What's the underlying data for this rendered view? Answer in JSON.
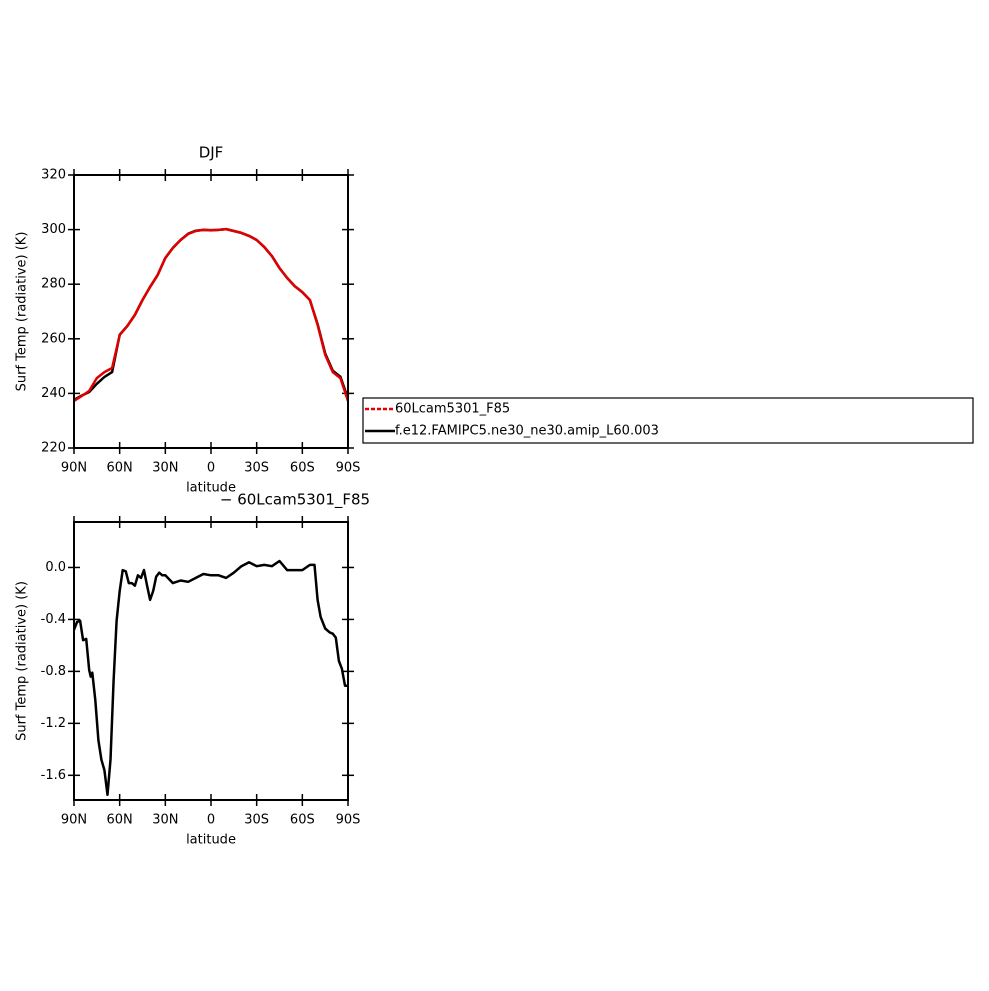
{
  "chart_data": [
    {
      "type": "line",
      "title": "DJF",
      "xlabel": "latitude",
      "ylabel": "Surf Temp (radiative) (K)",
      "x": [
        90,
        85,
        80,
        75,
        70,
        65,
        60,
        55,
        50,
        45,
        40,
        35,
        30,
        25,
        20,
        15,
        10,
        5,
        0,
        -5,
        -10,
        -15,
        -20,
        -25,
        -30,
        -35,
        -40,
        -45,
        -50,
        -55,
        -60,
        -65,
        -70,
        -75,
        -80,
        -85,
        -90
      ],
      "series": [
        {
          "name": "60Lcam5301_F85",
          "color": "#e00000",
          "values": [
            237.2,
            239.0,
            240.9,
            245.6,
            247.8,
            249.3,
            261.4,
            264.7,
            268.7,
            274.2,
            279.0,
            283.4,
            289.6,
            293.3,
            296.2,
            298.4,
            299.5,
            299.9,
            299.7,
            299.9,
            300.2,
            299.5,
            298.8,
            297.7,
            296.2,
            293.6,
            290.3,
            285.9,
            282.3,
            279.3,
            277.1,
            274.2,
            265.1,
            254.1,
            247.8,
            245.6,
            237.2
          ]
        },
        {
          "name": "f.e12.FAMIPC5.ne30_ne30.amip_L60.003",
          "color": "#000000",
          "values": [
            237.6,
            239.2,
            240.5,
            243.5,
            246.0,
            247.8,
            261.5,
            264.7,
            268.8,
            274.2,
            279.0,
            283.4,
            289.6,
            293.3,
            296.2,
            298.5,
            299.6,
            299.9,
            299.8,
            299.9,
            300.2,
            299.5,
            298.8,
            297.7,
            296.2,
            293.6,
            290.3,
            285.9,
            282.3,
            279.3,
            277.1,
            274.2,
            265.4,
            254.6,
            248.3,
            246.1,
            238.1
          ]
        }
      ],
      "xlim": [
        90,
        -90
      ],
      "xticks": [
        {
          "value": 90,
          "label": "90N"
        },
        {
          "value": 60,
          "label": "60N"
        },
        {
          "value": 30,
          "label": "30N"
        },
        0,
        {
          "value": -30,
          "label": "30S"
        },
        {
          "value": -60,
          "label": "60S"
        },
        {
          "value": -90,
          "label": "90S"
        }
      ],
      "ylim": [
        220,
        320
      ],
      "yticks": [
        220,
        240,
        260,
        280,
        300,
        320
      ],
      "legend": "outside-right"
    },
    {
      "type": "line",
      "title": "− 60Lcam5301_F85",
      "xlabel": "latitude",
      "ylabel": "Surf Temp (radiative) (K)",
      "x": [
        90,
        88,
        86,
        84,
        82,
        80,
        79,
        78,
        76,
        74,
        72,
        70,
        68,
        66,
        64,
        62,
        60,
        58,
        56,
        54,
        52,
        50,
        48,
        46,
        44,
        42,
        40,
        38,
        36,
        34,
        32,
        30,
        25,
        20,
        15,
        10,
        5,
        0,
        -5,
        -10,
        -15,
        -20,
        -25,
        -30,
        -35,
        -40,
        -45,
        -50,
        -55,
        -60,
        -65,
        -68,
        -70,
        -72,
        -75,
        -78,
        -80,
        -82,
        -84,
        -86,
        -88,
        -90
      ],
      "values": [
        -0.48,
        -0.42,
        -0.41,
        -0.56,
        -0.55,
        -0.79,
        -0.84,
        -0.81,
        -1.02,
        -1.33,
        -1.48,
        -1.56,
        -1.75,
        -1.48,
        -0.87,
        -0.41,
        -0.18,
        -0.02,
        -0.03,
        -0.12,
        -0.12,
        -0.14,
        -0.06,
        -0.08,
        -0.02,
        -0.14,
        -0.25,
        -0.18,
        -0.07,
        -0.04,
        -0.06,
        -0.06,
        -0.12,
        -0.1,
        -0.11,
        -0.08,
        -0.05,
        -0.06,
        -0.06,
        -0.08,
        -0.04,
        0.01,
        0.04,
        0.01,
        0.02,
        0.01,
        0.05,
        -0.02,
        -0.02,
        -0.02,
        0.02,
        0.02,
        -0.25,
        -0.38,
        -0.47,
        -0.5,
        -0.51,
        -0.54,
        -0.72,
        -0.78,
        -0.91,
        -0.91
      ],
      "color": "#000000",
      "xlim": [
        90,
        -90
      ],
      "xticks": [
        {
          "value": 90,
          "label": "90N"
        },
        {
          "value": 60,
          "label": "60N"
        },
        {
          "value": 30,
          "label": "30N"
        },
        0,
        {
          "value": -30,
          "label": "30S"
        },
        {
          "value": -60,
          "label": "60S"
        },
        {
          "value": -90,
          "label": "90S"
        }
      ],
      "ylim": [
        -1.79,
        0.35
      ],
      "yticks": [
        {
          "value": 0,
          "label": "0.0"
        },
        -0.4,
        -0.8,
        -1.2,
        -1.6
      ]
    }
  ]
}
